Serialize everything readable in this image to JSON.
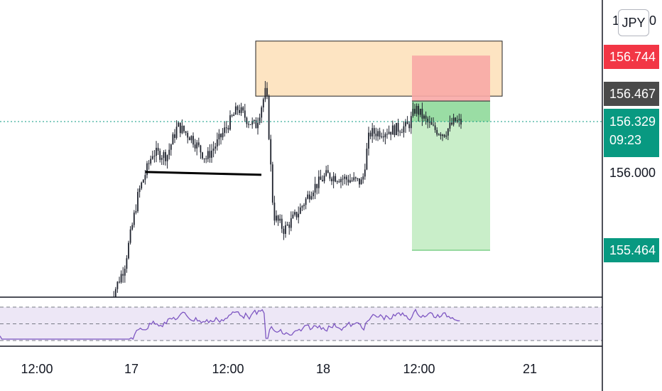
{
  "header": {
    "currency_button": "JPY",
    "axis_top_left": "1",
    "axis_top_right": "0"
  },
  "price_axis": {
    "tp_label": "156.744",
    "entry_label": "156.467",
    "last_price": "156.329",
    "countdown": "09:23",
    "level_label": "156.000",
    "sl_label": "155.464"
  },
  "time_axis": {
    "ticks": [
      "12:00",
      "17",
      "12:00",
      "18",
      "12:00",
      "21"
    ]
  },
  "colors": {
    "tp_bg": "#f23645",
    "entry_bg": "#4a4a4a",
    "last_bg": "#089981",
    "sl_bg": "#089981",
    "supply_zone": "#fde4c2",
    "risk_zone": "#f8a9a6",
    "reward_zone": "#c9eec9",
    "rsi_line": "#7e57c2"
  },
  "chart_data": {
    "type": "candlestick",
    "instrument_quote": "JPY",
    "ylim": [
      155.2,
      157.0
    ],
    "y_ticks": [
      156.0
    ],
    "x_ticks": [
      "12:00",
      "17",
      "12:00",
      "18",
      "12:00",
      "21"
    ],
    "close_path": [
      {
        "t": 0.155,
        "p": 155.12
      },
      {
        "t": 0.175,
        "p": 155.35
      },
      {
        "t": 0.195,
        "p": 155.85
      },
      {
        "t": 0.215,
        "p": 156.12
      },
      {
        "t": 0.235,
        "p": 156.1
      },
      {
        "t": 0.25,
        "p": 156.3
      },
      {
        "t": 0.27,
        "p": 156.22
      },
      {
        "t": 0.29,
        "p": 156.08
      },
      {
        "t": 0.305,
        "p": 156.18
      },
      {
        "t": 0.32,
        "p": 156.3
      },
      {
        "t": 0.335,
        "p": 156.42
      },
      {
        "t": 0.35,
        "p": 156.33
      },
      {
        "t": 0.36,
        "p": 156.3
      },
      {
        "t": 0.375,
        "p": 156.55
      },
      {
        "t": 0.385,
        "p": 155.7
      },
      {
        "t": 0.4,
        "p": 155.6
      },
      {
        "t": 0.42,
        "p": 155.72
      },
      {
        "t": 0.44,
        "p": 155.88
      },
      {
        "t": 0.46,
        "p": 155.97
      },
      {
        "t": 0.48,
        "p": 155.95
      },
      {
        "t": 0.51,
        "p": 155.92
      },
      {
        "t": 0.52,
        "p": 156.25
      },
      {
        "t": 0.55,
        "p": 156.27
      },
      {
        "t": 0.575,
        "p": 156.3
      },
      {
        "t": 0.585,
        "p": 156.42
      },
      {
        "t": 0.6,
        "p": 156.33
      },
      {
        "t": 0.61,
        "p": 156.28
      },
      {
        "t": 0.625,
        "p": 156.25
      },
      {
        "t": 0.64,
        "p": 156.33
      },
      {
        "t": 0.65,
        "p": 156.32
      }
    ],
    "support_line": {
      "from": 0.205,
      "to": 0.368,
      "p": 155.99
    },
    "supply_zone": {
      "from": 0.36,
      "to": 0.707,
      "top": 156.87,
      "bottom": 156.5
    },
    "position": {
      "from": 0.58,
      "to": 0.69,
      "take_profit": 156.744,
      "entry": 156.467,
      "stop_loss": 155.464
    },
    "last_price": 156.329,
    "rsi": {
      "upper": 70,
      "lower": 30,
      "mid": 50
    }
  }
}
